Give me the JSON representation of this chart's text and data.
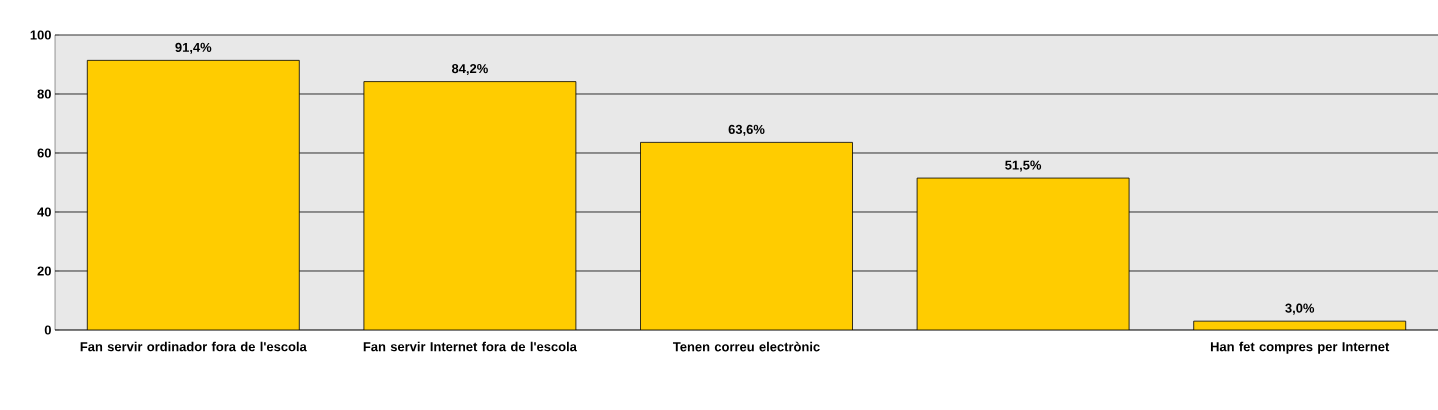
{
  "chart_data": {
    "type": "bar",
    "categories": [
      "Fan servir ordinador fora de l'escola",
      "Fan servir Internet fora de l'escola",
      "Tenen correu electrònic",
      null,
      "Han fet compres per Internet"
    ],
    "values": [
      91.4,
      84.2,
      63.6,
      51.5,
      3.0
    ],
    "value_labels": [
      "91,4%",
      "84,2%",
      "63,6%",
      "51,5%",
      "3,0%"
    ],
    "color": "#ffcc00",
    "ylim": [
      0,
      100
    ],
    "yticks": [
      0,
      20,
      40,
      60,
      80,
      100
    ],
    "grid": "y"
  }
}
